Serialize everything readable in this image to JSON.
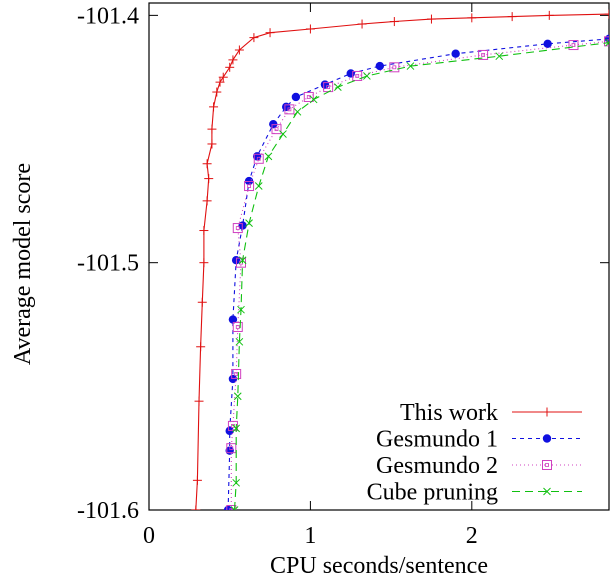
{
  "chart_data": {
    "type": "line",
    "xlabel": "CPU seconds/sentence",
    "ylabel": "Average model score",
    "xlim": [
      0,
      2.85
    ],
    "ylim": [
      -101.6,
      -101.395
    ],
    "x_ticks": [
      0,
      1,
      2
    ],
    "x_tick_labels": [
      "0",
      "1",
      "2"
    ],
    "y_ticks": [
      -101.6,
      -101.5,
      -101.4
    ],
    "y_tick_labels": [
      "-101.6",
      "-101.5",
      "-101.4"
    ],
    "grid": false,
    "legend_position": "bottom-right",
    "series": [
      {
        "name": "This work",
        "color": "#e01010",
        "dash": "solid",
        "marker": "plus",
        "points": [
          [
            0.29,
            -101.6
          ],
          [
            0.3,
            -101.588
          ],
          [
            0.31,
            -101.556
          ],
          [
            0.32,
            -101.534
          ],
          [
            0.33,
            -101.516
          ],
          [
            0.34,
            -101.5
          ],
          [
            0.34,
            -101.487
          ],
          [
            0.36,
            -101.475
          ],
          [
            0.37,
            -101.466
          ],
          [
            0.36,
            -101.46
          ],
          [
            0.39,
            -101.452
          ],
          [
            0.39,
            -101.446
          ],
          [
            0.4,
            -101.437
          ],
          [
            0.42,
            -101.431
          ],
          [
            0.44,
            -101.427
          ],
          [
            0.46,
            -101.425
          ],
          [
            0.5,
            -101.421
          ],
          [
            0.52,
            -101.418
          ],
          [
            0.56,
            -101.414
          ],
          [
            0.65,
            -101.409
          ],
          [
            0.75,
            -101.407
          ],
          [
            1.0,
            -101.4055
          ],
          [
            1.32,
            -101.4035
          ],
          [
            1.52,
            -101.4025
          ],
          [
            1.75,
            -101.4015
          ],
          [
            2.0,
            -101.401
          ],
          [
            2.25,
            -101.4005
          ],
          [
            2.48,
            -101.4
          ],
          [
            2.85,
            -101.3995
          ]
        ]
      },
      {
        "name": "Gesmundo 1",
        "color": "#1010e0",
        "dash": "4,4",
        "marker": "filled-circle",
        "points": [
          [
            0.49,
            -101.6
          ],
          [
            0.5,
            -101.576
          ],
          [
            0.5,
            -101.568
          ],
          [
            0.52,
            -101.547
          ],
          [
            0.52,
            -101.523
          ],
          [
            0.54,
            -101.499
          ],
          [
            0.58,
            -101.485
          ],
          [
            0.62,
            -101.467
          ],
          [
            0.67,
            -101.457
          ],
          [
            0.77,
            -101.444
          ],
          [
            0.85,
            -101.437
          ],
          [
            0.91,
            -101.433
          ],
          [
            1.09,
            -101.428
          ],
          [
            1.25,
            -101.4235
          ],
          [
            1.43,
            -101.4205
          ],
          [
            1.9,
            -101.4155
          ],
          [
            2.47,
            -101.4115
          ],
          [
            2.85,
            -101.4095
          ]
        ]
      },
      {
        "name": "Gesmundo 2",
        "color": "#d040c0",
        "dash": "1,3",
        "marker": "open-square",
        "points": [
          [
            0.51,
            -101.6
          ],
          [
            0.51,
            -101.575
          ],
          [
            0.52,
            -101.566
          ],
          [
            0.54,
            -101.545
          ],
          [
            0.55,
            -101.526
          ],
          [
            0.57,
            -101.5
          ],
          [
            0.55,
            -101.486
          ],
          [
            0.62,
            -101.469
          ],
          [
            0.68,
            -101.458
          ],
          [
            0.79,
            -101.446
          ],
          [
            0.87,
            -101.438
          ],
          [
            0.99,
            -101.433
          ],
          [
            1.11,
            -101.429
          ],
          [
            1.29,
            -101.4245
          ],
          [
            1.52,
            -101.421
          ],
          [
            2.07,
            -101.416
          ],
          [
            2.63,
            -101.412
          ],
          [
            2.85,
            -101.4105
          ]
        ]
      },
      {
        "name": "Cube pruning",
        "color": "#10c010",
        "dash": "8,5",
        "marker": "cross",
        "points": [
          [
            0.53,
            -101.6
          ],
          [
            0.54,
            -101.589
          ],
          [
            0.54,
            -101.567
          ],
          [
            0.55,
            -101.554
          ],
          [
            0.56,
            -101.532
          ],
          [
            0.57,
            -101.519
          ],
          [
            0.58,
            -101.499
          ],
          [
            0.62,
            -101.484
          ],
          [
            0.68,
            -101.469
          ],
          [
            0.74,
            -101.457
          ],
          [
            0.83,
            -101.448
          ],
          [
            0.92,
            -101.439
          ],
          [
            1.02,
            -101.434
          ],
          [
            1.17,
            -101.429
          ],
          [
            1.35,
            -101.4245
          ],
          [
            1.62,
            -101.4205
          ],
          [
            2.17,
            -101.4165
          ],
          [
            2.85,
            -101.411
          ]
        ]
      }
    ]
  }
}
